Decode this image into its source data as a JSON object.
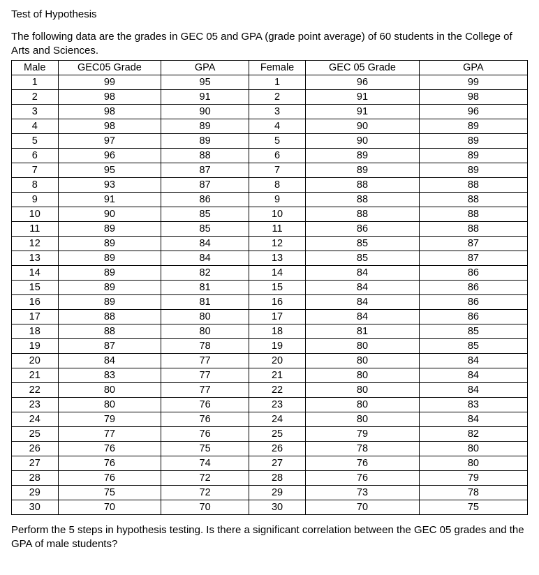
{
  "title": "Test of Hypothesis",
  "intro": "The following data are the grades in GEC 05 and GPA (grade point average) of 60 students in the College of Arts and Sciences.",
  "headers": {
    "male": "Male",
    "gec_m": "GEC05 Grade",
    "gpa_m": "GPA",
    "female": "Female",
    "gec_f": "GEC 05 Grade",
    "gpa_f": "GPA"
  },
  "table": {
    "type": "table",
    "border_color": "#000000",
    "background_color": "#ffffff",
    "font_family": "Comic Sans MS",
    "cell_fontsize": 14.5,
    "header_fontweight": "normal",
    "columns": [
      "Male",
      "GEC05 Grade",
      "GPA",
      "Female",
      "GEC 05 Grade",
      "GPA"
    ],
    "rows": [
      [
        "1",
        "99",
        "95",
        "1",
        "96",
        "99"
      ],
      [
        "2",
        "98",
        "91",
        "2",
        "91",
        "98"
      ],
      [
        "3",
        "98",
        "90",
        "3",
        "91",
        "96"
      ],
      [
        "4",
        "98",
        "89",
        "4",
        "90",
        "89"
      ],
      [
        "5",
        "97",
        "89",
        "5",
        "90",
        "89"
      ],
      [
        "6",
        "96",
        "88",
        "6",
        "89",
        "89"
      ],
      [
        "7",
        "95",
        "87",
        "7",
        "89",
        "89"
      ],
      [
        "8",
        "93",
        "87",
        "8",
        "88",
        "88"
      ],
      [
        "9",
        "91",
        "86",
        "9",
        "88",
        "88"
      ],
      [
        "10",
        "90",
        "85",
        "10",
        "88",
        "88"
      ],
      [
        "11",
        "89",
        "85",
        "11",
        "86",
        "88"
      ],
      [
        "12",
        "89",
        "84",
        "12",
        "85",
        "87"
      ],
      [
        "13",
        "89",
        "84",
        "13",
        "85",
        "87"
      ],
      [
        "14",
        "89",
        "82",
        "14",
        "84",
        "86"
      ],
      [
        "15",
        "89",
        "81",
        "15",
        "84",
        "86"
      ],
      [
        "16",
        "89",
        "81",
        "16",
        "84",
        "86"
      ],
      [
        "17",
        "88",
        "80",
        "17",
        "84",
        "86"
      ],
      [
        "18",
        "88",
        "80",
        "18",
        "81",
        "85"
      ],
      [
        "19",
        "87",
        "78",
        "19",
        "80",
        "85"
      ],
      [
        "20",
        "84",
        "77",
        "20",
        "80",
        "84"
      ],
      [
        "21",
        "83",
        "77",
        "21",
        "80",
        "84"
      ],
      [
        "22",
        "80",
        "77",
        "22",
        "80",
        "84"
      ],
      [
        "23",
        "80",
        "76",
        "23",
        "80",
        "83"
      ],
      [
        "24",
        "79",
        "76",
        "24",
        "80",
        "84"
      ],
      [
        "25",
        "77",
        "76",
        "25",
        "79",
        "82"
      ],
      [
        "26",
        "76",
        "75",
        "26",
        "78",
        "80"
      ],
      [
        "27",
        "76",
        "74",
        "27",
        "76",
        "80"
      ],
      [
        "28",
        "76",
        "72",
        "28",
        "76",
        "79"
      ],
      [
        "29",
        "75",
        "72",
        "29",
        "73",
        "78"
      ],
      [
        "30",
        "70",
        "70",
        "30",
        "70",
        "75"
      ]
    ]
  },
  "question": "Perform the 5 steps in hypothesis testing. Is there a significant correlation between the GEC 05 grades and the GPA of male students?"
}
